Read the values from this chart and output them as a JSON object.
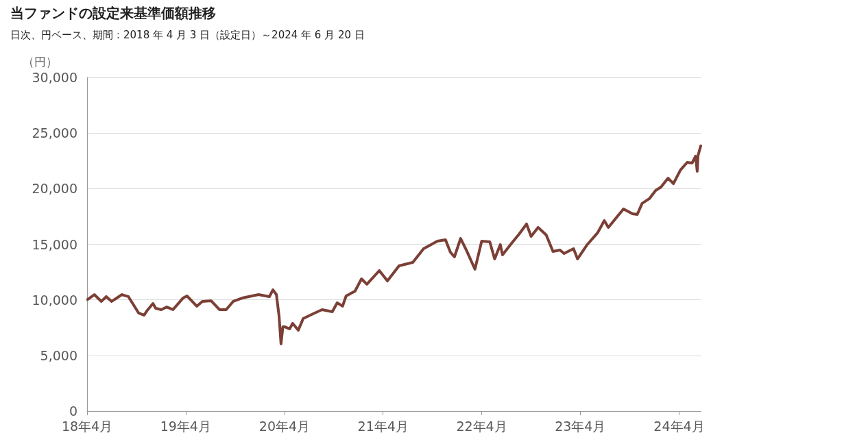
{
  "chart_data": {
    "type": "line",
    "title": "当ファンドの設定来基準価額推移",
    "subtitle": "日次、円ベース、期間：2018 年 4 月 3 日（設定日）～2024 年 6 月 20 日",
    "ylabel": "（円）",
    "x": [
      "2018-04-03",
      "2018-04-28",
      "2018-05-24",
      "2018-06-11",
      "2018-07-01",
      "2018-08-08",
      "2018-09-01",
      "2018-10-09",
      "2018-10-29",
      "2018-11-10",
      "2018-12-01",
      "2018-12-11",
      "2019-01-01",
      "2019-01-21",
      "2019-02-13",
      "2019-03-22",
      "2019-04-06",
      "2019-05-12",
      "2019-06-02",
      "2019-07-04",
      "2019-08-04",
      "2019-08-29",
      "2019-09-24",
      "2019-10-27",
      "2019-12-27",
      "2020-02-05",
      "2020-02-18",
      "2020-03-02",
      "2020-03-12",
      "2020-03-19",
      "2020-03-26",
      "2020-04-01",
      "2020-04-20",
      "2020-05-01",
      "2020-05-22",
      "2020-06-09",
      "2020-07-16",
      "2020-08-18",
      "2020-09-25",
      "2020-10-13",
      "2020-11-02",
      "2020-11-15",
      "2020-12-18",
      "2021-01-11",
      "2021-01-31",
      "2021-03-18",
      "2021-04-17",
      "2021-05-30",
      "2021-07-20",
      "2021-08-29",
      "2021-10-19",
      "2021-11-18",
      "2021-12-06",
      "2021-12-21",
      "2022-01-13",
      "2022-02-03",
      "2022-03-07",
      "2022-04-01",
      "2022-05-01",
      "2022-05-19",
      "2022-06-09",
      "2022-06-17",
      "2022-07-25",
      "2022-08-17",
      "2022-09-14",
      "2022-10-01",
      "2022-10-27",
      "2022-11-26",
      "2022-12-21",
      "2023-01-16",
      "2023-01-31",
      "2023-03-07",
      "2023-03-22",
      "2023-04-27",
      "2023-06-04",
      "2023-06-29",
      "2023-07-14",
      "2023-09-08",
      "2023-10-11",
      "2023-10-29",
      "2023-11-16",
      "2023-12-13",
      "2024-01-05",
      "2024-01-25",
      "2024-02-20",
      "2024-03-11",
      "2024-04-06",
      "2024-05-01",
      "2024-05-19",
      "2024-06-01",
      "2024-06-07",
      "2024-06-10",
      "2024-06-20"
    ],
    "series": [
      {
        "color": "#7b3f35",
        "values": [
          10040,
          10470,
          9860,
          10290,
          9860,
          10470,
          10290,
          8810,
          8620,
          9060,
          9670,
          9240,
          9120,
          9360,
          9120,
          10160,
          10350,
          9430,
          9860,
          9920,
          9120,
          9120,
          9860,
          10160,
          10470,
          10290,
          10900,
          10470,
          8500,
          6040,
          7580,
          7580,
          7390,
          7880,
          7270,
          8320,
          8750,
          9120,
          8930,
          9730,
          9430,
          10350,
          10780,
          11890,
          11400,
          12630,
          11700,
          13060,
          13370,
          14600,
          15280,
          15400,
          14290,
          13860,
          15520,
          14480,
          12750,
          15280,
          15220,
          13680,
          14970,
          14050,
          15220,
          15890,
          16820,
          15710,
          16510,
          15830,
          14350,
          14480,
          14170,
          14600,
          13680,
          14970,
          16020,
          17120,
          16510,
          18170,
          17740,
          17680,
          18670,
          19100,
          19840,
          20140,
          20940,
          20450,
          21680,
          22360,
          22300,
          22920,
          21560,
          22980,
          23840
        ]
      }
    ],
    "xlim": [
      "2018-04-01",
      "2024-06-20"
    ],
    "xticks": [
      {
        "value": "2018-04-01",
        "label": "18年4月"
      },
      {
        "value": "2019-04-01",
        "label": "19年4月"
      },
      {
        "value": "2020-04-01",
        "label": "20年4月"
      },
      {
        "value": "2021-04-01",
        "label": "21年4月"
      },
      {
        "value": "2022-04-01",
        "label": "22年4月"
      },
      {
        "value": "2023-04-01",
        "label": "23年4月"
      },
      {
        "value": "2024-04-01",
        "label": "24年4月"
      }
    ],
    "ylim": [
      0,
      30000
    ],
    "yticks": [
      0,
      {
        "value": 5000,
        "label": "5,000"
      },
      {
        "value": 10000,
        "label": "10,000"
      },
      {
        "value": 15000,
        "label": "15,000"
      },
      {
        "value": 20000,
        "label": "20,000"
      },
      {
        "value": 25000,
        "label": "25,000"
      },
      {
        "value": 30000,
        "label": "30,000"
      }
    ],
    "grid": "y",
    "marker": "none",
    "line_style": "solid"
  }
}
